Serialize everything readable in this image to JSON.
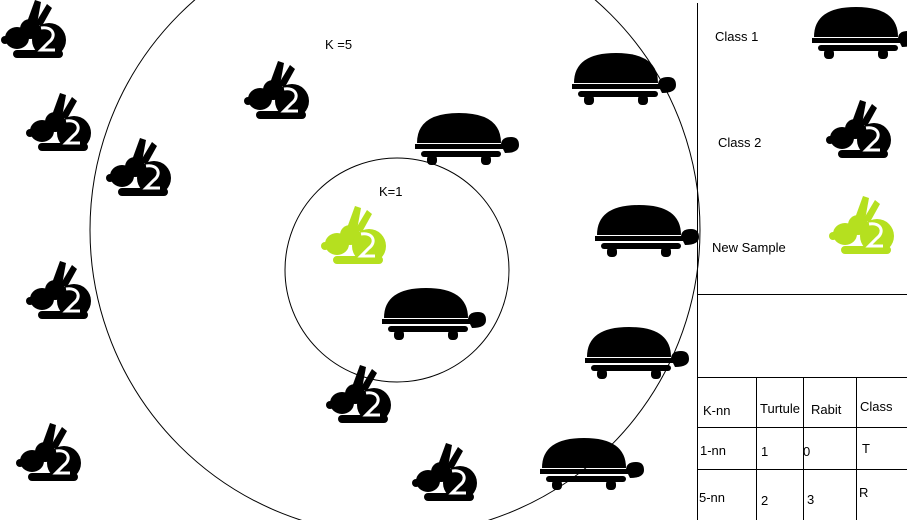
{
  "colors": {
    "animal": "#000000",
    "new_sample": "#b5e01f",
    "line": "#000000"
  },
  "icons": {
    "class1": "turtle-icon",
    "class2": "rabbit-icon",
    "sample": "rabbit-icon"
  },
  "circles": {
    "outer_label": "K =5",
    "inner_label": "K=1"
  },
  "legend": {
    "class1_label": "Class 1",
    "class2_label": "Class 2",
    "sample_label": "New Sample"
  },
  "table": {
    "headers": [
      "K-nn",
      "Turtule",
      "Rabit",
      "Class"
    ],
    "rows": [
      [
        "1-nn",
        "1",
        "0",
        "T"
      ],
      [
        "5-nn",
        "2",
        "3",
        "R"
      ]
    ]
  }
}
